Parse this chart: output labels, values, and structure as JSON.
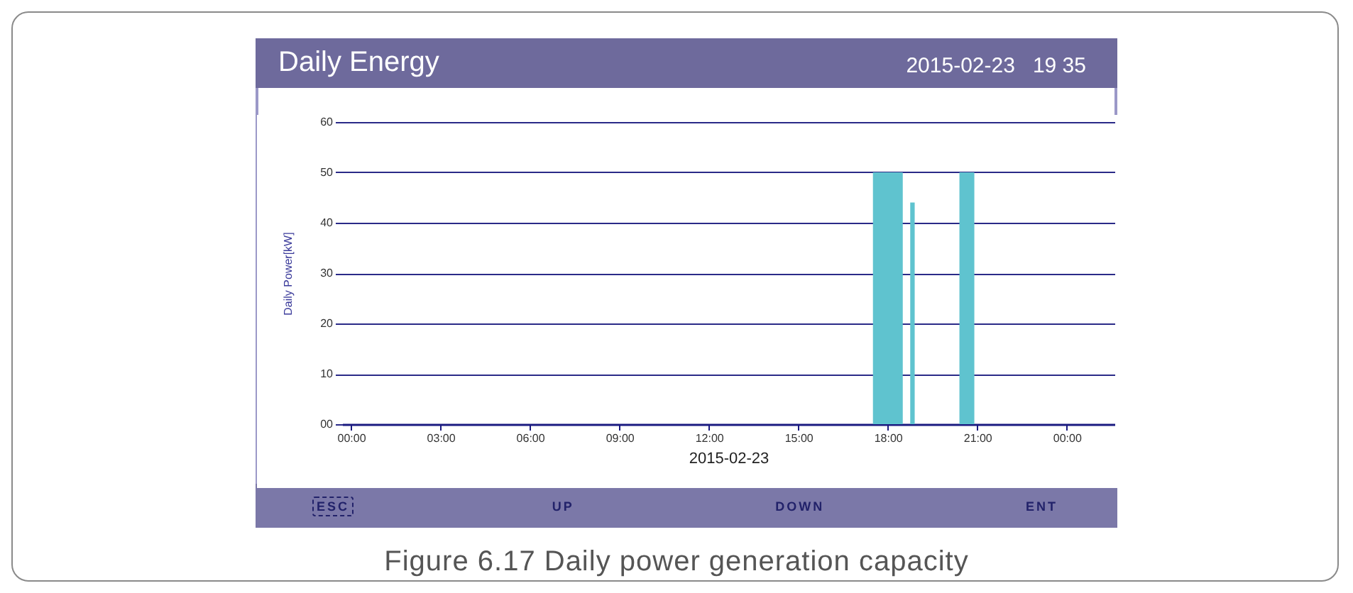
{
  "chart_data": {
    "type": "histogram",
    "title": "Daily Energy",
    "subtitle": "2015-02-23   19 35",
    "xlabel": "2015-02-23",
    "ylabel": "Daily Power[kW]",
    "bins": [
      17.5,
      18.5,
      18.75,
      18.9,
      20.4,
      20.9
    ],
    "values": [
      50,
      0,
      44,
      0,
      50
    ],
    "color": "#5fc3cf",
    "xlim": [
      -0.3,
      25.6
    ],
    "xticks": [
      {
        "value": 0,
        "label": "00:00"
      },
      {
        "value": 3,
        "label": "03:00"
      },
      {
        "value": 6,
        "label": "06:00"
      },
      {
        "value": 9,
        "label": "09:00"
      },
      {
        "value": 12,
        "label": "12:00"
      },
      {
        "value": 15,
        "label": "15:00"
      },
      {
        "value": 18,
        "label": "18:00"
      },
      {
        "value": 21,
        "label": "21:00"
      },
      {
        "value": 24,
        "label": "00:00"
      }
    ],
    "ylim": [
      0,
      60
    ],
    "yticks": [
      {
        "value": 0,
        "label": "00"
      },
      10,
      20,
      30,
      40,
      50,
      60
    ],
    "grid": "y",
    "annotations": [
      "ESC",
      "UP",
      "DOWN",
      "ENT",
      "Figure 6.17 Daily power generation capacity"
    ]
  }
}
